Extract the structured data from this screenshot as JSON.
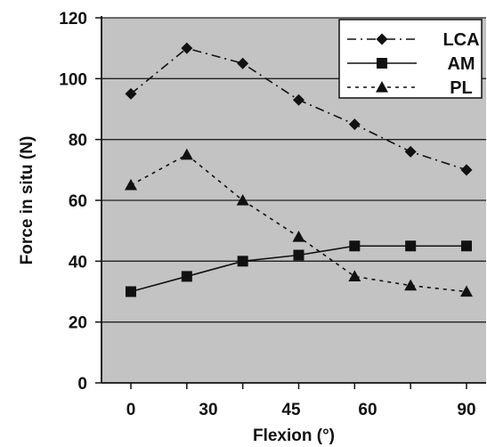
{
  "chart_data": {
    "type": "line",
    "title": "",
    "xlabel": "Flexion (°)",
    "ylabel": "Force in situ (N)",
    "x": [
      0,
      15,
      30,
      45,
      60,
      75,
      90
    ],
    "xticks": [
      0,
      30,
      45,
      60,
      90
    ],
    "xlim": [
      0,
      90
    ],
    "yticks": [
      0,
      20,
      40,
      60,
      80,
      100,
      120
    ],
    "ylim": [
      0,
      120
    ],
    "grid": "horizontal",
    "plot_background": "#c3c3c3",
    "legend_position": "top-right",
    "series": [
      {
        "name": "LCA",
        "marker": "diamond",
        "line": "dash-dot",
        "values": [
          95,
          110,
          105,
          93,
          85,
          76,
          70
        ]
      },
      {
        "name": "AM",
        "marker": "square",
        "line": "solid",
        "values": [
          30,
          35,
          40,
          42,
          45,
          45,
          45
        ]
      },
      {
        "name": "PL",
        "marker": "triangle",
        "line": "dotted",
        "values": [
          65,
          75,
          60,
          48,
          35,
          32,
          30
        ]
      }
    ]
  }
}
